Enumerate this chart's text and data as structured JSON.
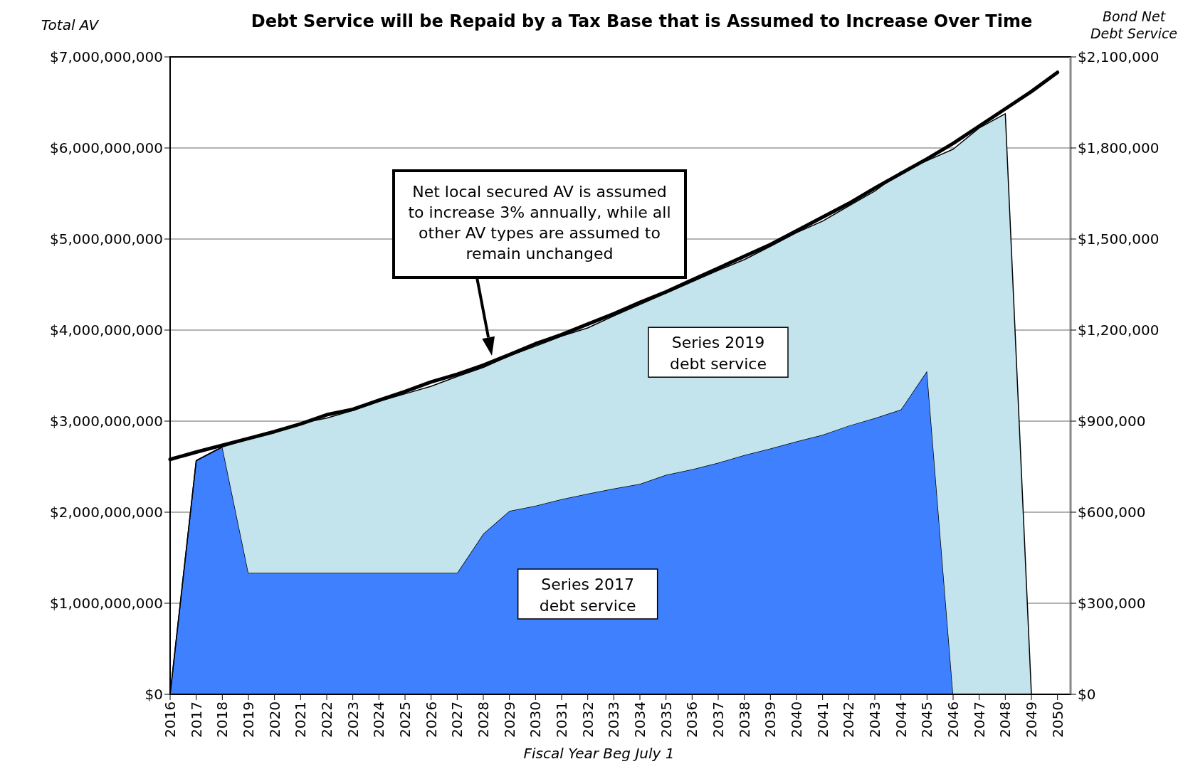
{
  "chart_data": {
    "type": "area",
    "title": "Debt Service will be Repaid by a Tax Base that is Assumed to Increase Over Time",
    "xlabel": "Fiscal Year Beg July 1",
    "ylabel": "Total AV",
    "y2label": "Bond Net Debt Service",
    "x": [
      2016,
      2017,
      2018,
      2019,
      2020,
      2021,
      2022,
      2023,
      2024,
      2025,
      2026,
      2027,
      2028,
      2029,
      2030,
      2031,
      2032,
      2033,
      2034,
      2035,
      2036,
      2037,
      2038,
      2039,
      2040,
      2041,
      2042,
      2043,
      2044,
      2045,
      2046,
      2047,
      2048,
      2049,
      2050
    ],
    "stacked": true,
    "series": [
      {
        "name": "Series 2017 debt service",
        "axis": "y2",
        "color": "#3f80ff",
        "values": [
          0,
          770000,
          815000,
          400000,
          400000,
          400000,
          400000,
          400000,
          400000,
          400000,
          400000,
          400000,
          529000,
          604000,
          621000,
          643000,
          661000,
          678000,
          693000,
          723000,
          741000,
          763000,
          788000,
          810000,
          833000,
          855000,
          885000,
          910000,
          938000,
          1065000,
          0,
          0,
          0,
          0,
          0
        ]
      },
      {
        "name": "Series 2019 debt service",
        "axis": "y2",
        "color": "#c3e4ec",
        "values": [
          0,
          0,
          0,
          440000,
          465000,
          493000,
          510000,
          535000,
          565000,
          590000,
          615000,
          647000,
          548000,
          511000,
          526000,
          537000,
          546000,
          569000,
          591000,
          599000,
          618000,
          634000,
          644000,
          666000,
          688000,
          704000,
          724000,
          748000,
          783000,
          693000,
          1796000,
          1866000,
          1913000,
          0,
          0
        ]
      },
      {
        "type": "line",
        "color": "#000000",
        "values": [
          2580000000,
          2660000000,
          2735000000,
          2810000000,
          2885000000,
          2970000000,
          3070000000,
          3130000000,
          3230000000,
          3325000000,
          3430000000,
          3515000000,
          3615000000,
          3730000000,
          3850000000,
          3950000000,
          4065000000,
          4180000000,
          4305000000,
          4420000000,
          4550000000,
          4680000000,
          4810000000,
          4940000000,
          5090000000,
          5240000000,
          5390000000,
          5560000000,
          5720000000,
          5880000000,
          6050000000,
          6240000000,
          6430000000,
          6620000000,
          6830000000
        ]
      }
    ],
    "xlim": [
      2016,
      2050.5
    ],
    "xticks": [
      2016,
      2017,
      2018,
      2019,
      2020,
      2021,
      2022,
      2023,
      2024,
      2025,
      2026,
      2027,
      2028,
      2029,
      2030,
      2031,
      2032,
      2033,
      2034,
      2035,
      2036,
      2037,
      2038,
      2039,
      2040,
      2041,
      2042,
      2043,
      2044,
      2045,
      2046,
      2047,
      2048,
      2049,
      2050
    ],
    "ylim": [
      0,
      7000000000
    ],
    "yticks": [
      {
        "value": 0,
        "label": "$0"
      },
      {
        "value": 1000000000,
        "label": "$1,000,000,000"
      },
      {
        "value": 2000000000,
        "label": "$2,000,000,000"
      },
      {
        "value": 3000000000,
        "label": "$3,000,000,000"
      },
      {
        "value": 4000000000,
        "label": "$4,000,000,000"
      },
      {
        "value": 5000000000,
        "label": "$5,000,000,000"
      },
      {
        "value": 6000000000,
        "label": "$6,000,000,000"
      },
      {
        "value": 7000000000,
        "label": "$7,000,000,000"
      }
    ],
    "y2lim": [
      0,
      2100000
    ],
    "y2ticks": [
      {
        "value": 0,
        "label": "$0"
      },
      {
        "value": 300000,
        "label": "$300,000"
      },
      {
        "value": 600000,
        "label": "$600,000"
      },
      {
        "value": 900000,
        "label": "$900,000"
      },
      {
        "value": 1200000,
        "label": "$1,200,000"
      },
      {
        "value": 1500000,
        "label": "$1,500,000"
      },
      {
        "value": 1800000,
        "label": "$1,800,000"
      },
      {
        "value": 2100000,
        "label": "$2,100,000"
      }
    ],
    "grid": "y",
    "annotations": [
      "Net local secured AV is assumed\nto increase 3% annually, while all\nother AV types are assumed to\nremain unchanged"
    ]
  }
}
